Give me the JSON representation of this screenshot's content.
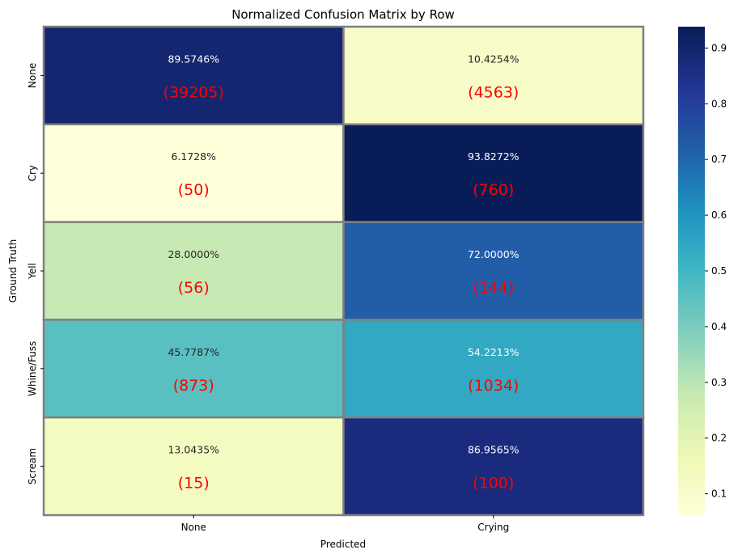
{
  "chart_data": {
    "type": "heatmap",
    "title": "Normalized Confusion Matrix by Row",
    "xlabel": "Predicted",
    "ylabel": "Ground Truth",
    "x_categories": [
      "None",
      "Crying"
    ],
    "y_categories": [
      "None",
      "Cry",
      "Yell",
      "Whine/Fuss",
      "Scream"
    ],
    "values": [
      [
        0.895746,
        0.104254
      ],
      [
        0.061728,
        0.938272
      ],
      [
        0.28,
        0.72
      ],
      [
        0.457787,
        0.542213
      ],
      [
        0.130435,
        0.869565
      ]
    ],
    "percent_labels": [
      [
        "89.5746%",
        "10.4254%"
      ],
      [
        "6.1728%",
        "93.8272%"
      ],
      [
        "28.0000%",
        "72.0000%"
      ],
      [
        "45.7787%",
        "54.2213%"
      ],
      [
        "13.0435%",
        "86.9565%"
      ]
    ],
    "count_labels": [
      [
        "(39205)",
        "(4563)"
      ],
      [
        "(50)",
        "(760)"
      ],
      [
        "(56)",
        "(144)"
      ],
      [
        "(873)",
        "(1034)"
      ],
      [
        "(15)",
        "(100)"
      ]
    ],
    "colorbar": {
      "colormap": "YlGnBu",
      "range": [
        0.061728,
        0.938272
      ],
      "ticks": [
        "0.1",
        "0.2",
        "0.3",
        "0.4",
        "0.5",
        "0.6",
        "0.7",
        "0.8",
        "0.9"
      ]
    },
    "count_label_color": "#ff0000",
    "cell_border_color": "#808080"
  }
}
